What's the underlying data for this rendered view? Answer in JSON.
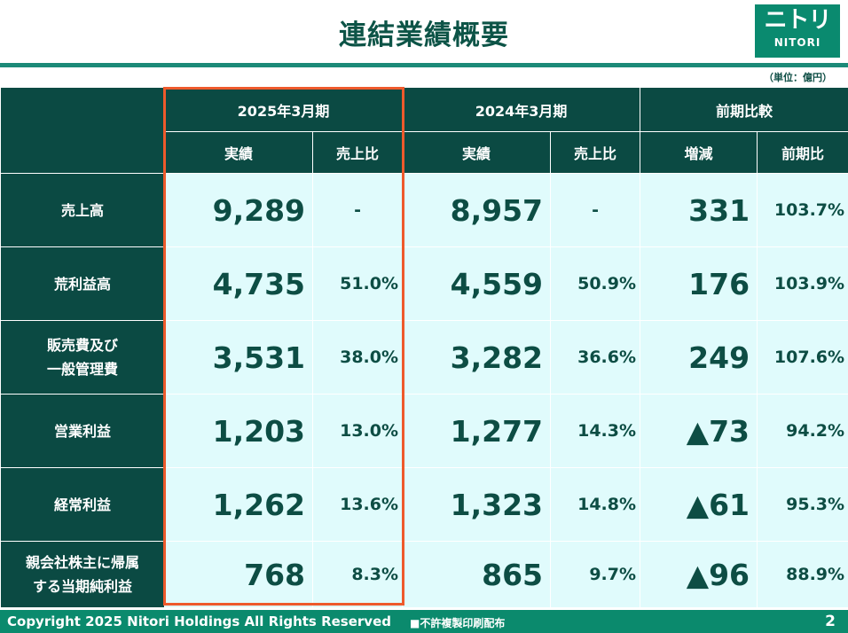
{
  "title": "連結業績概要",
  "logo": {
    "main": "ニトリ",
    "sub": "NITORI"
  },
  "unit": "（単位：億円）",
  "header": {
    "period_current": "2025年3月期",
    "period_prior": "2024年3月期",
    "comparison": "前期比較",
    "actual": "実績",
    "sales_ratio": "売上比",
    "change": "増減",
    "yoy": "前期比"
  },
  "rows": [
    {
      "label_lines": [
        "売上高"
      ],
      "cur": "9,289",
      "cur_ratio": "-",
      "prev": "8,957",
      "prev_ratio": "-",
      "diff": "331",
      "yoy": "103.7%"
    },
    {
      "label_lines": [
        "荒利益高"
      ],
      "cur": "4,735",
      "cur_ratio": "51.0%",
      "prev": "4,559",
      "prev_ratio": "50.9%",
      "diff": "176",
      "yoy": "103.9%"
    },
    {
      "label_lines": [
        "販売費及び",
        "一般管理費"
      ],
      "cur": "3,531",
      "cur_ratio": "38.0%",
      "prev": "3,282",
      "prev_ratio": "36.6%",
      "diff": "249",
      "yoy": "107.6%"
    },
    {
      "label_lines": [
        "営業利益"
      ],
      "cur": "1,203",
      "cur_ratio": "13.0%",
      "prev": "1,277",
      "prev_ratio": "14.3%",
      "diff": "▲73",
      "yoy": "94.2%"
    },
    {
      "label_lines": [
        "経常利益"
      ],
      "cur": "1,262",
      "cur_ratio": "13.6%",
      "prev": "1,323",
      "prev_ratio": "14.8%",
      "diff": "▲61",
      "yoy": "95.3%"
    },
    {
      "label_lines": [
        "親会社株主に帰属",
        "する当期純利益"
      ],
      "cur": "768",
      "cur_ratio": "8.3%",
      "prev": "865",
      "prev_ratio": "9.7%",
      "diff": "▲96",
      "yoy": "88.9%"
    }
  ],
  "footer": {
    "copyright": "Copyright 2025 Nitori Holdings All Rights Reserved",
    "notice": "■不許複製印刷配布",
    "page": "2"
  },
  "colors": {
    "header_bg": "#0b4a43",
    "cell_bg": "#e0fbfc",
    "accent_teal": "#1c8a78",
    "footer_bg": "#0b8a6d",
    "highlight_border": "#ee5a2c",
    "text": "#0d4d44"
  }
}
